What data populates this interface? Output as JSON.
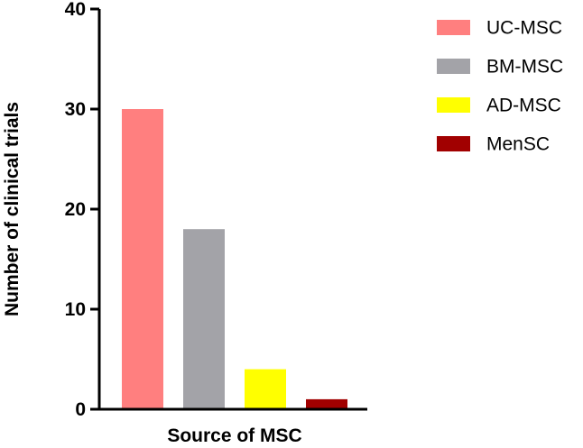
{
  "chart_data": {
    "type": "bar",
    "title": "",
    "xlabel": "Source of MSC",
    "ylabel": "Number of clinical trials",
    "categories": [
      "UC-MSC",
      "BM-MSC",
      "AD-MSC",
      "MenSC"
    ],
    "values": [
      30,
      18,
      4,
      1
    ],
    "colors": [
      "#ff7f7f",
      "#a3a3a8",
      "#ffff00",
      "#a10000"
    ],
    "ylim": [
      0,
      40
    ],
    "yticks": [
      0,
      10,
      20,
      30,
      40
    ],
    "grid": false,
    "legend": {
      "position": "top-right",
      "entries": [
        "UC-MSC",
        "BM-MSC",
        "AD-MSC",
        "MenSC"
      ]
    }
  }
}
